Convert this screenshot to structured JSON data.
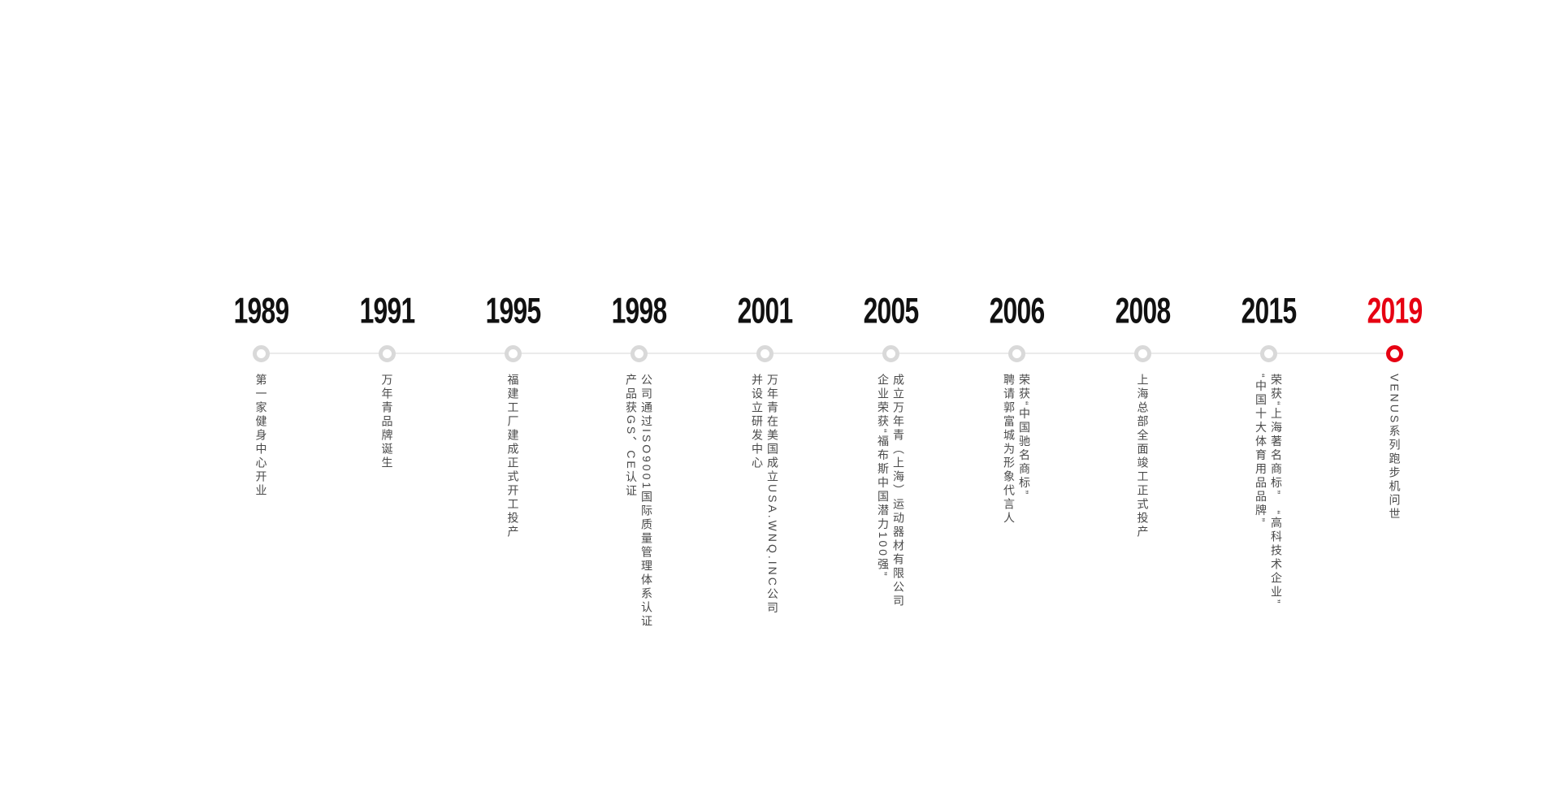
{
  "colors": {
    "accent_red": "#e60012",
    "year_black": "#111111",
    "node_ring_gray": "#d9d9d9",
    "axis_gray": "#ebebeb",
    "milestone_text_gray": "#4a4a4a",
    "background": "#ffffff"
  },
  "timeline": {
    "items": [
      {
        "year": "1989",
        "highlight": false,
        "lines": [
          "第一家健身中心开业"
        ]
      },
      {
        "year": "1991",
        "highlight": false,
        "lines": [
          "万年青品牌诞生"
        ]
      },
      {
        "year": "1995",
        "highlight": false,
        "lines": [
          "福建工厂建成正式开工投产"
        ]
      },
      {
        "year": "1998",
        "highlight": false,
        "lines": [
          "公司通过ISO9001国际质量管理体系认证",
          "产品获GS、CE认证"
        ]
      },
      {
        "year": "2001",
        "highlight": false,
        "lines": [
          "万年青在美国成立USA.WNQ.INC公司",
          "并设立研发中心"
        ]
      },
      {
        "year": "2005",
        "highlight": false,
        "lines": [
          "成立万年青（上海）运动器材有限公司",
          "企业荣获“福布斯中国潜力100强”"
        ]
      },
      {
        "year": "2006",
        "highlight": false,
        "lines": [
          "荣获“中国驰名商标”",
          "聘请郭富城为形象代言人"
        ]
      },
      {
        "year": "2008",
        "highlight": false,
        "lines": [
          "上海总部全面竣工正式投产"
        ]
      },
      {
        "year": "2015",
        "highlight": false,
        "lines": [
          "荣获“上海著名商标”　“高科技术企业”",
          "“中国十大体育用品品牌”"
        ]
      },
      {
        "year": "2019",
        "highlight": true,
        "lines": [
          "VENUS系列跑步机问世"
        ]
      }
    ]
  }
}
